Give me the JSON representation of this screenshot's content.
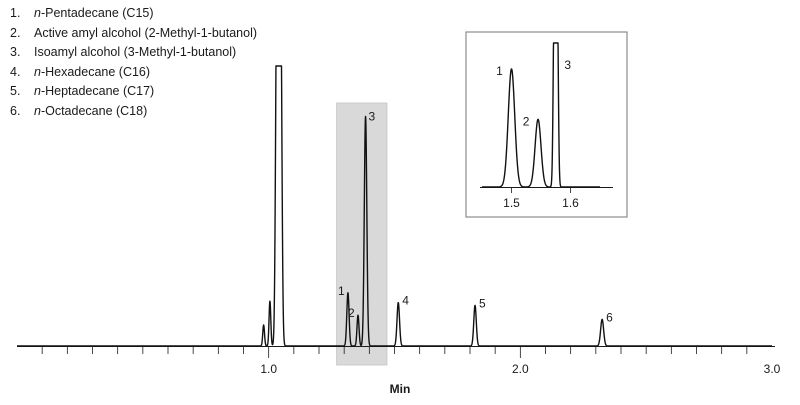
{
  "chart_data": {
    "type": "line",
    "title": "",
    "xlabel": "Min",
    "ylabel": "",
    "xlim": [
      0.0,
      3.0
    ],
    "x_ticks": [
      1.0,
      2.0,
      3.0
    ],
    "x_tick_labels": [
      "1.0",
      "2.0",
      "3.0"
    ],
    "grid": false,
    "legend_entries": [
      {
        "num": "1.",
        "prefix": "n",
        "text": "-Pentadecane (C15)"
      },
      {
        "num": "2.",
        "prefix": "",
        "text": "Active amyl alcohol (2-Methyl-1-butanol)"
      },
      {
        "num": "3.",
        "prefix": "",
        "text": "Isoamyl alcohol (3-Methyl-1-butanol)"
      },
      {
        "num": "4.",
        "prefix": "n",
        "text": "-Hexadecane (C16)"
      },
      {
        "num": "5.",
        "prefix": "n",
        "text": "-Heptadecane (C17)"
      },
      {
        "num": "6.",
        "prefix": "n",
        "text": "-Octadecane (C18)"
      }
    ],
    "peaks": [
      {
        "label": "",
        "x": 0.98,
        "height": 0.075,
        "width": 0.0035
      },
      {
        "label": "",
        "x": 1.005,
        "height": 0.16,
        "width": 0.0035
      },
      {
        "label": "",
        "x": 1.04,
        "height": 1.0,
        "width": 0.02,
        "flat": true
      },
      {
        "label": "1",
        "x": 1.315,
        "height": 0.19,
        "width": 0.0045
      },
      {
        "label": "2",
        "x": 1.355,
        "height": 0.11,
        "width": 0.004
      },
      {
        "label": "3",
        "x": 1.385,
        "height": 0.82,
        "width": 0.005
      },
      {
        "label": "4",
        "x": 1.515,
        "height": 0.155,
        "width": 0.005
      },
      {
        "label": "5",
        "x": 1.82,
        "height": 0.145,
        "width": 0.005
      },
      {
        "label": "6",
        "x": 2.325,
        "height": 0.095,
        "width": 0.006
      }
    ],
    "highlight_range": [
      1.27,
      1.47
    ],
    "inset": {
      "xlim": [
        1.45,
        1.65
      ],
      "x_ticks": [
        1.5,
        1.6
      ],
      "x_tick_labels": [
        "1.5",
        "1.6"
      ],
      "peaks": [
        {
          "label": "1",
          "x": 1.5,
          "height": 0.82,
          "width": 0.0055
        },
        {
          "label": "2",
          "x": 1.545,
          "height": 0.47,
          "width": 0.005
        },
        {
          "label": "3",
          "x": 1.575,
          "height": 1.0,
          "width": 0.007,
          "flat": true
        }
      ]
    }
  }
}
